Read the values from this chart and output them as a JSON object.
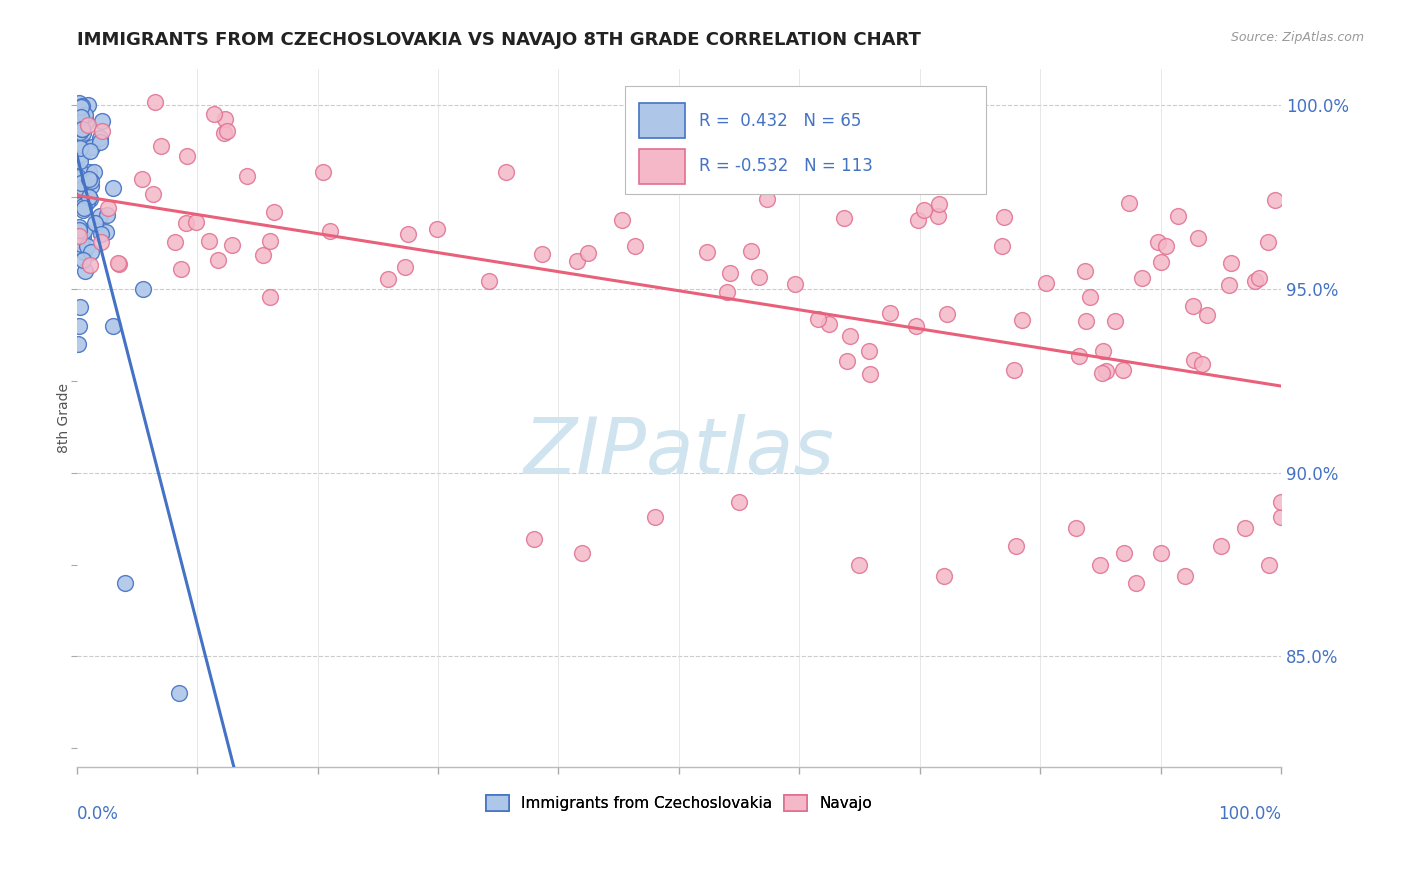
{
  "title": "IMMIGRANTS FROM CZECHOSLOVAKIA VS NAVAJO 8TH GRADE CORRELATION CHART",
  "source": "Source: ZipAtlas.com",
  "ylabel": "8th Grade",
  "color_blue": "#aec6e8",
  "color_pink": "#f4b8c8",
  "edge_blue": "#4472c4",
  "edge_pink": "#e07090",
  "line_blue": "#4472c4",
  "line_pink": "#e8607a",
  "watermark_color": "#d0e4f0",
  "ytick_vals": [
    0.85,
    0.9,
    0.95,
    1.0
  ],
  "ytick_labels": [
    "85.0%",
    "90.0%",
    "95.0%",
    "100.0%"
  ],
  "xlim": [
    0.0,
    1.0
  ],
  "ylim": [
    0.82,
    1.01
  ]
}
